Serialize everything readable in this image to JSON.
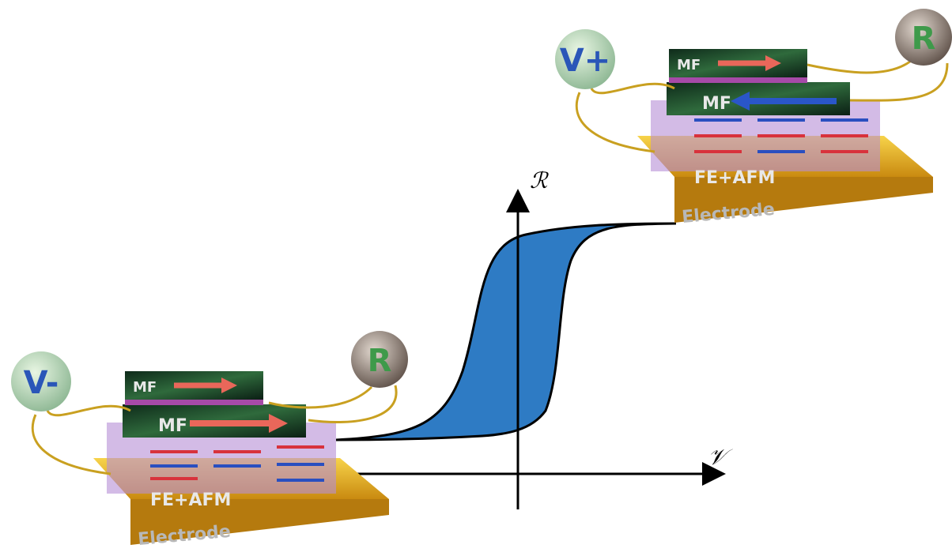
{
  "axes": {
    "y_label": "ℛ",
    "x_label": "𝒱"
  },
  "devices": [
    {
      "voltage": "V-",
      "meter": "R",
      "top_layer": "MF",
      "bottom_layer": "MF",
      "barrier": "FE+AFM",
      "base": "Electrode"
    },
    {
      "voltage": "V+",
      "meter": "R",
      "top_layer": "MF",
      "bottom_layer": "MF",
      "barrier": "FE+AFM",
      "base": "Electrode"
    }
  ]
}
